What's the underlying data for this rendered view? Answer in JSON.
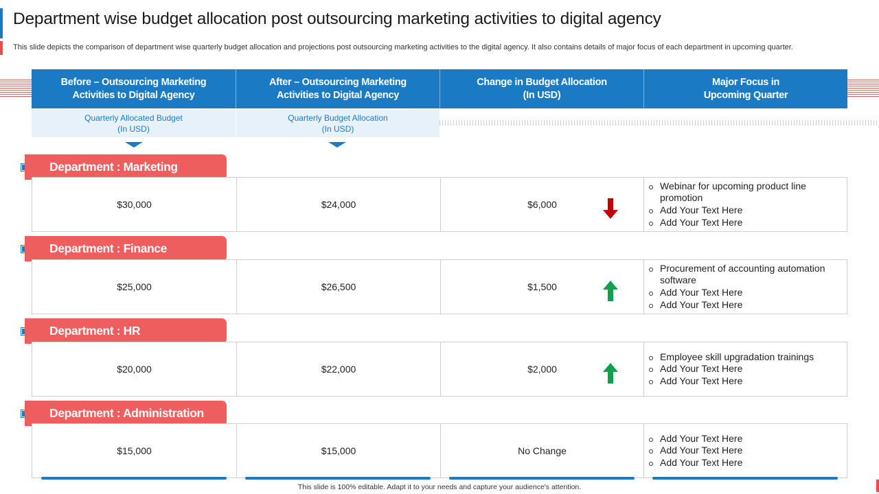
{
  "title": "Department wise budget allocation post outsourcing marketing activities to digital agency",
  "subtitle": "This slide depicts the comparison of department wise quarterly budget allocation and projections post outsourcing marketing activities to the digital agency. It also contains details of major focus of each department in upcoming quarter.",
  "headers": [
    "Before – Outsourcing Marketing\nActivities to Digital Agency",
    "After – Outsourcing Marketing\nActivities to Digital Agency",
    "Change in Budget Allocation\n(In USD)",
    "Major Focus in\nUpcoming Quarter"
  ],
  "subheaders": [
    "Quarterly  Allocated  Budget\n(In USD)",
    "Quarterly  Budget  Allocation\n(In USD)"
  ],
  "departments": [
    {
      "label": "Department : Marketing",
      "before": "$30,000",
      "after": "$24,000",
      "change": "$6,000",
      "trend": "down",
      "focus": [
        "Webinar for upcoming product line promotion",
        "Add Your Text Here",
        "Add Your Text Here"
      ]
    },
    {
      "label": "Department : Finance",
      "before": "$25,000",
      "after": "$26,500",
      "change": "$1,500",
      "trend": "up",
      "focus": [
        "Procurement of accounting automation software",
        "Add Your Text Here",
        "Add Your Text Here"
      ]
    },
    {
      "label": "Department : HR",
      "before": "$20,000",
      "after": "$22,000",
      "change": "$2,000",
      "trend": "up",
      "focus": [
        "Employee skill upgradation trainings",
        "Add Your Text Here",
        "Add Your Text Here"
      ]
    },
    {
      "label": "Department : Administration",
      "before": "$15,000",
      "after": "$15,000",
      "change": "No Change",
      "trend": "none",
      "focus": [
        "Add Your Text Here",
        "Add Your Text Here",
        "Add Your Text Here"
      ]
    }
  ],
  "footer": "This slide is 100% editable.  Adapt it to your needs and capture your audience's attention.",
  "colors": {
    "accent_blue": "#1a7bc4",
    "department_red": "#ef5e5e",
    "arrow_down": "#c00000",
    "arrow_up": "#0ea04b",
    "subheader_bg": "#e6f1fa"
  }
}
